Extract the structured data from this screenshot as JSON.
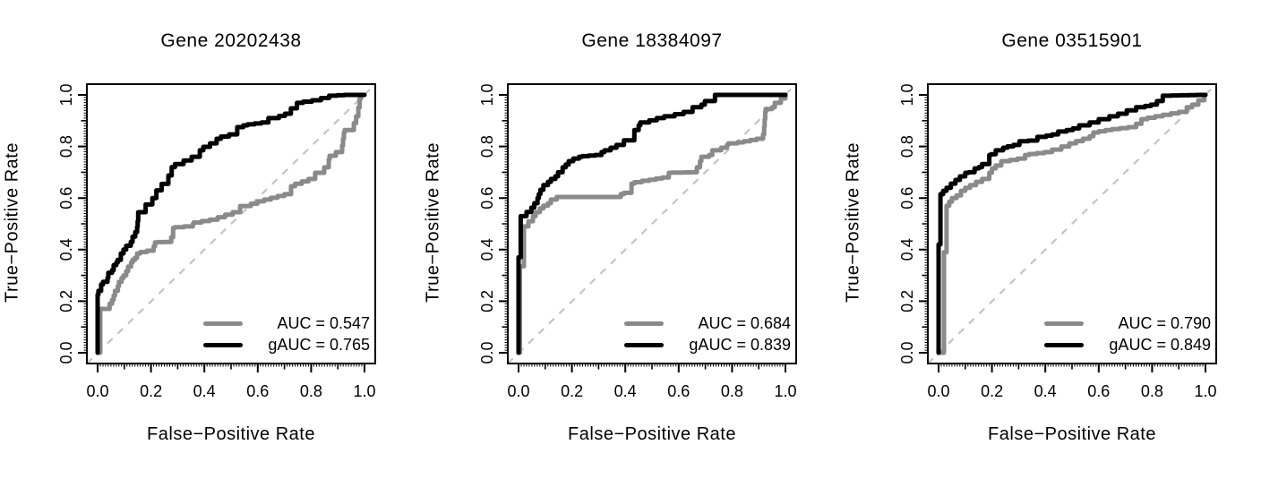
{
  "colors": {
    "auc_line": "#8a8a8a",
    "gauc_line": "#000000",
    "diagonal": "#c4c4c4",
    "axis": "#000000",
    "background": "#ffffff"
  },
  "chart_data": [
    {
      "type": "line",
      "subtype": "roc-step-curves",
      "title": "Gene 20202438",
      "xlabel": "False−Positive Rate",
      "ylabel": "True−Positive Rate",
      "xlim": [
        0,
        1
      ],
      "ylim": [
        0,
        1
      ],
      "x_tick_labels": [
        "0.0",
        "0.2",
        "0.4",
        "0.6",
        "0.8",
        "1.0"
      ],
      "y_tick_labels": [
        "0.0",
        "0.2",
        "0.4",
        "0.6",
        "0.8",
        "1.0"
      ],
      "grid": false,
      "legend_position": "bottom-right",
      "diagonal_reference": "dashed",
      "series": [
        {
          "name": "AUC",
          "label": "AUC = 0.547",
          "auc": 0.547,
          "color": "#8a8a8a",
          "points": [
            [
              0,
              0
            ],
            [
              0.01,
              0
            ],
            [
              0.01,
              0.165
            ],
            [
              0.045,
              0.17
            ],
            [
              0.054,
              0.19
            ],
            [
              0.06,
              0.205
            ],
            [
              0.065,
              0.222
            ],
            [
              0.076,
              0.24
            ],
            [
              0.08,
              0.258
            ],
            [
              0.09,
              0.275
            ],
            [
              0.097,
              0.29
            ],
            [
              0.107,
              0.3
            ],
            [
              0.114,
              0.316
            ],
            [
              0.125,
              0.334
            ],
            [
              0.131,
              0.35
            ],
            [
              0.14,
              0.36
            ],
            [
              0.148,
              0.368
            ],
            [
              0.16,
              0.385
            ],
            [
              0.21,
              0.396
            ],
            [
              0.215,
              0.413
            ],
            [
              0.226,
              0.428
            ],
            [
              0.276,
              0.43
            ],
            [
              0.283,
              0.448
            ],
            [
              0.29,
              0.484
            ],
            [
              0.357,
              0.49
            ],
            [
              0.36,
              0.5
            ],
            [
              0.45,
              0.516
            ],
            [
              0.534,
              0.545
            ],
            [
              0.574,
              0.569
            ],
            [
              0.624,
              0.587
            ],
            [
              0.725,
              0.615
            ],
            [
              0.74,
              0.646
            ],
            [
              0.815,
              0.674
            ],
            [
              0.849,
              0.698
            ],
            [
              0.866,
              0.719
            ],
            [
              0.869,
              0.75
            ],
            [
              0.916,
              0.778
            ],
            [
              0.926,
              0.854
            ],
            [
              0.96,
              0.864
            ],
            [
              0.977,
              0.917
            ],
            [
              0.987,
              0.986
            ],
            [
              1,
              1
            ]
          ]
        },
        {
          "name": "gAUC",
          "label": "gAUC = 0.765",
          "auc": 0.765,
          "color": "#000000",
          "points": [
            [
              0,
              0
            ],
            [
              0,
              0.21
            ],
            [
              0.003,
              0.225
            ],
            [
              0.013,
              0.24
            ],
            [
              0.02,
              0.265
            ],
            [
              0.037,
              0.275
            ],
            [
              0.04,
              0.29
            ],
            [
              0.054,
              0.31
            ],
            [
              0.06,
              0.32
            ],
            [
              0.07,
              0.34
            ],
            [
              0.075,
              0.35
            ],
            [
              0.087,
              0.36
            ],
            [
              0.097,
              0.385
            ],
            [
              0.107,
              0.4
            ],
            [
              0.124,
              0.415
            ],
            [
              0.131,
              0.43
            ],
            [
              0.141,
              0.45
            ],
            [
              0.148,
              0.468
            ],
            [
              0.152,
              0.51
            ],
            [
              0.18,
              0.545
            ],
            [
              0.205,
              0.575
            ],
            [
              0.22,
              0.6
            ],
            [
              0.24,
              0.63
            ],
            [
              0.265,
              0.655
            ],
            [
              0.29,
              0.72
            ],
            [
              0.322,
              0.732
            ],
            [
              0.383,
              0.76
            ],
            [
              0.396,
              0.785
            ],
            [
              0.446,
              0.812
            ],
            [
              0.462,
              0.83
            ],
            [
              0.523,
              0.847
            ],
            [
              0.546,
              0.875
            ],
            [
              0.562,
              0.882
            ],
            [
              0.64,
              0.893
            ],
            [
              0.68,
              0.91
            ],
            [
              0.724,
              0.927
            ],
            [
              0.77,
              0.969
            ],
            [
              0.837,
              0.979
            ],
            [
              0.898,
              0.997
            ],
            [
              0.95,
              1
            ],
            [
              1,
              1
            ]
          ]
        }
      ]
    },
    {
      "type": "line",
      "subtype": "roc-step-curves",
      "title": "Gene 18384097",
      "xlabel": "False−Positive Rate",
      "ylabel": "True−Positive Rate",
      "xlim": [
        0,
        1
      ],
      "ylim": [
        0,
        1
      ],
      "x_tick_labels": [
        "0.0",
        "0.2",
        "0.4",
        "0.6",
        "0.8",
        "1.0"
      ],
      "y_tick_labels": [
        "0.0",
        "0.2",
        "0.4",
        "0.6",
        "0.8",
        "1.0"
      ],
      "grid": false,
      "legend_position": "bottom-right",
      "diagonal_reference": "dashed",
      "series": [
        {
          "name": "AUC",
          "label": "AUC = 0.684",
          "auc": 0.684,
          "color": "#8a8a8a",
          "points": [
            [
              0,
              0
            ],
            [
              0.005,
              0
            ],
            [
              0.005,
              0.33
            ],
            [
              0.02,
              0.335
            ],
            [
              0.02,
              0.465
            ],
            [
              0.037,
              0.49
            ],
            [
              0.054,
              0.51
            ],
            [
              0.064,
              0.53
            ],
            [
              0.08,
              0.545
            ],
            [
              0.093,
              0.56
            ],
            [
              0.11,
              0.57
            ],
            [
              0.121,
              0.58
            ],
            [
              0.143,
              0.594
            ],
            [
              0.171,
              0.604
            ],
            [
              0.383,
              0.604
            ],
            [
              0.395,
              0.615
            ],
            [
              0.423,
              0.62
            ],
            [
              0.434,
              0.656
            ],
            [
              0.49,
              0.667
            ],
            [
              0.563,
              0.68
            ],
            [
              0.574,
              0.698
            ],
            [
              0.668,
              0.7
            ],
            [
              0.68,
              0.719
            ],
            [
              0.685,
              0.743
            ],
            [
              0.714,
              0.76
            ],
            [
              0.726,
              0.767
            ],
            [
              0.759,
              0.785
            ],
            [
              0.781,
              0.795
            ],
            [
              0.786,
              0.806
            ],
            [
              0.82,
              0.812
            ],
            [
              0.868,
              0.82
            ],
            [
              0.916,
              0.83
            ],
            [
              0.92,
              0.847
            ],
            [
              0.926,
              0.934
            ],
            [
              0.95,
              0.945
            ],
            [
              0.96,
              0.952
            ],
            [
              0.983,
              0.969
            ],
            [
              1,
              0.986
            ],
            [
              1,
              1
            ]
          ]
        },
        {
          "name": "gAUC",
          "label": "gAUC = 0.839",
          "auc": 0.839,
          "color": "#000000",
          "points": [
            [
              0,
              0
            ],
            [
              0,
              0.36
            ],
            [
              0.008,
              0.37
            ],
            [
              0.008,
              0.5
            ],
            [
              0.03,
              0.53
            ],
            [
              0.048,
              0.546
            ],
            [
              0.059,
              0.563
            ],
            [
              0.071,
              0.58
            ],
            [
              0.076,
              0.6
            ],
            [
              0.082,
              0.615
            ],
            [
              0.093,
              0.632
            ],
            [
              0.11,
              0.65
            ],
            [
              0.121,
              0.663
            ],
            [
              0.138,
              0.674
            ],
            [
              0.148,
              0.684
            ],
            [
              0.165,
              0.7
            ],
            [
              0.177,
              0.719
            ],
            [
              0.188,
              0.73
            ],
            [
              0.205,
              0.743
            ],
            [
              0.227,
              0.753
            ],
            [
              0.239,
              0.76
            ],
            [
              0.311,
              0.767
            ],
            [
              0.322,
              0.778
            ],
            [
              0.345,
              0.785
            ],
            [
              0.367,
              0.795
            ],
            [
              0.395,
              0.806
            ],
            [
              0.434,
              0.824
            ],
            [
              0.45,
              0.864
            ],
            [
              0.456,
              0.882
            ],
            [
              0.49,
              0.893
            ],
            [
              0.546,
              0.91
            ],
            [
              0.585,
              0.917
            ],
            [
              0.652,
              0.934
            ],
            [
              0.685,
              0.952
            ],
            [
              0.698,
              0.962
            ],
            [
              0.736,
              0.976
            ],
            [
              0.759,
              1
            ],
            [
              1,
              1
            ]
          ]
        }
      ]
    },
    {
      "type": "line",
      "subtype": "roc-step-curves",
      "title": "Gene 03515901",
      "xlabel": "False−Positive Rate",
      "ylabel": "True−Positive Rate",
      "xlim": [
        0,
        1
      ],
      "ylim": [
        0,
        1
      ],
      "x_tick_labels": [
        "0.0",
        "0.2",
        "0.4",
        "0.6",
        "0.8",
        "1.0"
      ],
      "y_tick_labels": [
        "0.0",
        "0.2",
        "0.4",
        "0.6",
        "0.8",
        "1.0"
      ],
      "grid": false,
      "legend_position": "bottom-right",
      "diagonal_reference": "dashed",
      "series": [
        {
          "name": "AUC",
          "label": "AUC = 0.790",
          "auc": 0.79,
          "color": "#8a8a8a",
          "points": [
            [
              0,
              0
            ],
            [
              0.02,
              0
            ],
            [
              0.02,
              0.385
            ],
            [
              0.03,
              0.39
            ],
            [
              0.03,
              0.565
            ],
            [
              0.04,
              0.57
            ],
            [
              0.05,
              0.586
            ],
            [
              0.067,
              0.6
            ],
            [
              0.084,
              0.61
            ],
            [
              0.1,
              0.628
            ],
            [
              0.118,
              0.64
            ],
            [
              0.14,
              0.65
            ],
            [
              0.163,
              0.663
            ],
            [
              0.19,
              0.674
            ],
            [
              0.2,
              0.698
            ],
            [
              0.214,
              0.715
            ],
            [
              0.235,
              0.726
            ],
            [
              0.268,
              0.743
            ],
            [
              0.324,
              0.753
            ],
            [
              0.34,
              0.767
            ],
            [
              0.425,
              0.778
            ],
            [
              0.46,
              0.788
            ],
            [
              0.49,
              0.8
            ],
            [
              0.515,
              0.812
            ],
            [
              0.566,
              0.83
            ],
            [
              0.58,
              0.84
            ],
            [
              0.6,
              0.854
            ],
            [
              0.65,
              0.864
            ],
            [
              0.74,
              0.875
            ],
            [
              0.76,
              0.888
            ],
            [
              0.783,
              0.906
            ],
            [
              0.84,
              0.917
            ],
            [
              0.93,
              0.934
            ],
            [
              0.95,
              0.952
            ],
            [
              0.973,
              0.962
            ],
            [
              0.996,
              0.979
            ],
            [
              1,
              1
            ]
          ]
        },
        {
          "name": "gAUC",
          "label": "gAUC = 0.849",
          "auc": 0.849,
          "color": "#000000",
          "points": [
            [
              0,
              0
            ],
            [
              0,
              0.41
            ],
            [
              0.007,
              0.42
            ],
            [
              0.007,
              0.6
            ],
            [
              0.017,
              0.615
            ],
            [
              0.03,
              0.628
            ],
            [
              0.046,
              0.64
            ],
            [
              0.063,
              0.656
            ],
            [
              0.08,
              0.67
            ],
            [
              0.1,
              0.684
            ],
            [
              0.113,
              0.698
            ],
            [
              0.135,
              0.7
            ],
            [
              0.151,
              0.715
            ],
            [
              0.163,
              0.72
            ],
            [
              0.19,
              0.732
            ],
            [
              0.197,
              0.767
            ],
            [
              0.214,
              0.77
            ],
            [
              0.242,
              0.785
            ],
            [
              0.258,
              0.795
            ],
            [
              0.303,
              0.806
            ],
            [
              0.336,
              0.82
            ],
            [
              0.37,
              0.823
            ],
            [
              0.403,
              0.837
            ],
            [
              0.448,
              0.847
            ],
            [
              0.48,
              0.858
            ],
            [
              0.527,
              0.87
            ],
            [
              0.566,
              0.882
            ],
            [
              0.6,
              0.893
            ],
            [
              0.64,
              0.906
            ],
            [
              0.672,
              0.917
            ],
            [
              0.705,
              0.927
            ],
            [
              0.74,
              0.94
            ],
            [
              0.773,
              0.952
            ],
            [
              0.818,
              0.962
            ],
            [
              0.84,
              0.976
            ],
            [
              0.874,
              0.997
            ],
            [
              1,
              1
            ]
          ]
        }
      ]
    }
  ]
}
